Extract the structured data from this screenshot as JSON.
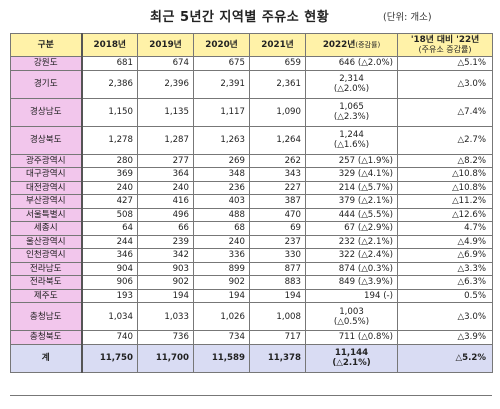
{
  "title": "최근 5년간 지역별 주유소 현황",
  "unit": "(단위: 개소)",
  "headers": {
    "region": "구분",
    "y2018": "2018년",
    "y2019": "2019년",
    "y2020": "2020년",
    "y2021": "2021년",
    "y2022": "2022년",
    "y2022_note": "(증감률)",
    "trend_line1": "'18년 대비 '22년",
    "trend_line2": "(주유소 증감률)"
  },
  "rows": [
    {
      "region": "강원도",
      "y2018": "681",
      "y2019": "674",
      "y2020": "675",
      "y2021": "659",
      "y2022": "646",
      "y2022_rate": "(△2.0%)",
      "trend": "△5.1%",
      "split": false
    },
    {
      "region": "경기도",
      "y2018": "2,386",
      "y2019": "2,396",
      "y2020": "2,391",
      "y2021": "2,361",
      "y2022": "2,314",
      "y2022_rate": "(△2.0%)",
      "trend": "△3.0%",
      "split": true
    },
    {
      "region": "경상남도",
      "y2018": "1,150",
      "y2019": "1,135",
      "y2020": "1,117",
      "y2021": "1,090",
      "y2022": "1,065",
      "y2022_rate": "(△2.3%)",
      "trend": "△7.4%",
      "split": true
    },
    {
      "region": "경상북도",
      "y2018": "1,278",
      "y2019": "1,287",
      "y2020": "1,263",
      "y2021": "1,264",
      "y2022": "1,244",
      "y2022_rate": "(△1.6%)",
      "trend": "△2.7%",
      "split": true
    },
    {
      "region": "광주광역시",
      "y2018": "280",
      "y2019": "277",
      "y2020": "269",
      "y2021": "262",
      "y2022": "257",
      "y2022_rate": "(△1.9%)",
      "trend": "△8.2%",
      "split": false
    },
    {
      "region": "대구광역시",
      "y2018": "369",
      "y2019": "364",
      "y2020": "348",
      "y2021": "343",
      "y2022": "329",
      "y2022_rate": "(△4.1%)",
      "trend": "△10.8%",
      "split": false
    },
    {
      "region": "대전광역시",
      "y2018": "240",
      "y2019": "240",
      "y2020": "236",
      "y2021": "227",
      "y2022": "214",
      "y2022_rate": "(△5.7%)",
      "trend": "△10.8%",
      "split": false
    },
    {
      "region": "부산광역시",
      "y2018": "427",
      "y2019": "416",
      "y2020": "403",
      "y2021": "387",
      "y2022": "379",
      "y2022_rate": "(△2.1%)",
      "trend": "△11.2%",
      "split": false
    },
    {
      "region": "서울특별시",
      "y2018": "508",
      "y2019": "496",
      "y2020": "488",
      "y2021": "470",
      "y2022": "444",
      "y2022_rate": "(△5.5%)",
      "trend": "△12.6%",
      "split": false
    },
    {
      "region": "세종시",
      "y2018": "64",
      "y2019": "66",
      "y2020": "68",
      "y2021": "69",
      "y2022": "67",
      "y2022_rate": "(△2.9%)",
      "trend": "4.7%",
      "split": false
    },
    {
      "region": "울산광역시",
      "y2018": "244",
      "y2019": "239",
      "y2020": "240",
      "y2021": "237",
      "y2022": "232",
      "y2022_rate": "(△2.1%)",
      "trend": "△4.9%",
      "split": false
    },
    {
      "region": "인천광역시",
      "y2018": "346",
      "y2019": "342",
      "y2020": "336",
      "y2021": "330",
      "y2022": "322",
      "y2022_rate": "(△2.4%)",
      "trend": "△6.9%",
      "split": false
    },
    {
      "region": "전라남도",
      "y2018": "904",
      "y2019": "903",
      "y2020": "899",
      "y2021": "877",
      "y2022": "874",
      "y2022_rate": "(△0.3%)",
      "trend": "△3.3%",
      "split": false
    },
    {
      "region": "전라북도",
      "y2018": "906",
      "y2019": "902",
      "y2020": "902",
      "y2021": "883",
      "y2022": "849",
      "y2022_rate": "(△3.9%)",
      "trend": "△6.3%",
      "split": false
    },
    {
      "region": "제주도",
      "y2018": "193",
      "y2019": "194",
      "y2020": "194",
      "y2021": "194",
      "y2022": "194",
      "y2022_rate": "(-)",
      "trend": "0.5%",
      "split": false
    },
    {
      "region": "충청남도",
      "y2018": "1,034",
      "y2019": "1,033",
      "y2020": "1,026",
      "y2021": "1,008",
      "y2022": "1,003",
      "y2022_rate": "(△0.5%)",
      "trend": "△3.0%",
      "split": true
    },
    {
      "region": "충청북도",
      "y2018": "740",
      "y2019": "736",
      "y2020": "734",
      "y2021": "717",
      "y2022": "711",
      "y2022_rate": "(△0.8%)",
      "trend": "△3.9%",
      "split": false
    }
  ],
  "total": {
    "region": "계",
    "y2018": "11,750",
    "y2019": "11,700",
    "y2020": "11,589",
    "y2021": "11,378",
    "y2022": "11,144",
    "y2022_rate": "(△2.1%)",
    "trend": "△5.2%"
  }
}
